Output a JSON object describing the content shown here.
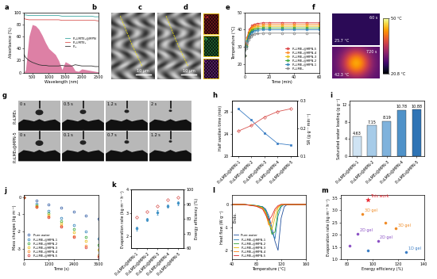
{
  "chart_data": [
    {
      "panel": "a",
      "type": "line",
      "xlabel": "Wavelength (nm)",
      "ylabel": "Absorbance (%)",
      "x": [
        250,
        300,
        400,
        500,
        600,
        700,
        800,
        900,
        1000,
        1100,
        1200,
        1300,
        1400,
        1500,
        1600,
        1700,
        1800,
        1900,
        2000,
        2100,
        2200,
        2300,
        2400,
        2500
      ],
      "xlim": [
        250,
        2500
      ],
      "xticks": [
        500,
        1000,
        1500,
        2000,
        2500
      ],
      "ylim": [
        0,
        100
      ],
      "yticks": [
        0,
        20,
        40,
        60,
        80,
        100
      ],
      "legend": "center right",
      "series": [
        {
          "type": "area",
          "color": "#c2185b",
          "values": [
            0,
            5,
            60,
            80,
            78,
            72,
            62,
            50,
            40,
            35,
            30,
            20,
            5,
            18,
            15,
            12,
            3,
            2,
            6,
            5,
            4,
            3,
            2,
            1
          ]
        },
        {
          "name": "P₁₀LMTE₆@MPN",
          "color": "#3aa6a0",
          "values": [
            96,
            96,
            95,
            95,
            95,
            95,
            95,
            95,
            95,
            95,
            95,
            95,
            94,
            94,
            94,
            94,
            94,
            94,
            94,
            94,
            94,
            94,
            93,
            93
          ]
        },
        {
          "name": "P₁₀LMTE₆",
          "color": "#d9534f",
          "values": [
            90,
            89,
            88,
            88,
            88,
            88,
            88,
            88,
            88,
            88,
            88,
            88,
            87,
            87,
            87,
            87,
            87,
            87,
            87,
            87,
            87,
            87,
            87,
            86
          ]
        },
        {
          "name": "P₁₀",
          "color": "#333333",
          "values": [
            30,
            25,
            20,
            17,
            15,
            13,
            12,
            12,
            11,
            11,
            11,
            11,
            12,
            11,
            11,
            11,
            13,
            12,
            11,
            11,
            11,
            11,
            10,
            10
          ]
        }
      ]
    },
    {
      "panel": "b",
      "type": "image",
      "scale_bar": "10 μm"
    },
    {
      "panel": "c",
      "type": "image",
      "scale_bar": "10 μm"
    },
    {
      "panel": "d",
      "type": "image",
      "channels": [
        {
          "name": "Ga",
          "color": "#e0303a"
        },
        {
          "name": "Fe",
          "color": "#3fbf5f"
        },
        {
          "name": "C",
          "color": "#b040d0"
        }
      ]
    },
    {
      "panel": "e",
      "type": "line",
      "xlabel": "Time (min)",
      "ylabel": "Temperature (°C)",
      "x": [
        0,
        1,
        2,
        3,
        4,
        5,
        6,
        8,
        10,
        15,
        20,
        30,
        40,
        50,
        60
      ],
      "xlim": [
        0,
        60
      ],
      "xticks": [
        0,
        20,
        40,
        60
      ],
      "ylim": [
        15,
        50
      ],
      "yticks": [
        20,
        30,
        40,
        50
      ],
      "legend": "lower right",
      "series": [
        {
          "name": "P₁₀LME₆@MPN-5",
          "color": "#d62728",
          "marker": "open_circle",
          "values": [
            25,
            31.3,
            35.5,
            38.3,
            40.2,
            41.3,
            42.3,
            43.2,
            43.6,
            44,
            44,
            44,
            44,
            44,
            44
          ]
        },
        {
          "name": "P₁₀LME₆@MPN-4",
          "color": "#ff7f0e",
          "marker": "open_circle",
          "values": [
            25,
            30.9,
            34.9,
            37.6,
            39.4,
            40.5,
            41.4,
            42.3,
            42.6,
            43,
            43,
            43,
            43,
            43,
            43
          ]
        },
        {
          "name": "P₁₀LME₆@MPN-3",
          "color": "#e6b800",
          "marker": "open_circle",
          "values": [
            25,
            30.6,
            34.4,
            36.9,
            38.6,
            39.6,
            40.5,
            41.3,
            41.7,
            42,
            42,
            42,
            42,
            42,
            42
          ]
        },
        {
          "name": "P₁₀LME₆@MPN-2",
          "color": "#2ca02c",
          "marker": "open_circle",
          "values": [
            25,
            30.3,
            33.8,
            36.2,
            37.8,
            38.8,
            39.6,
            40.4,
            40.7,
            41,
            41,
            41,
            41,
            41,
            41
          ]
        },
        {
          "name": "P₁₀LME₆@MPN-1",
          "color": "#1f77b4",
          "marker": "open_circle",
          "values": [
            25,
            30,
            33.3,
            35.5,
            37,
            37.9,
            38.7,
            39.4,
            39.7,
            40,
            40,
            40,
            40,
            40,
            40
          ]
        },
        {
          "name": "P₁₀LME₆",
          "color": "#7f7f7f",
          "marker": "open_circle",
          "values": [
            25,
            29.3,
            32.2,
            34.1,
            35.4,
            36.2,
            36.8,
            37.5,
            37.7,
            38,
            38,
            38,
            38,
            38,
            38
          ]
        }
      ]
    },
    {
      "panel": "f",
      "type": "image",
      "frames": [
        {
          "time": "60 s",
          "temperature": "25.7 °C"
        },
        {
          "time": "720 s",
          "temperature": "42.3 °C"
        }
      ],
      "cbar_range": [
        20.8,
        50
      ],
      "cbar_ticks": [
        {
          "value": 20.8,
          "label": "20.8 °C"
        },
        {
          "value": 50,
          "label": "50 °C"
        }
      ]
    },
    {
      "panel": "g",
      "type": "image",
      "rows": [
        {
          "name": "P₁₀LME₆",
          "times": [
            "0 s",
            "0.5 s",
            "1.2 s",
            "2 s"
          ]
        },
        {
          "name": "P₁₀LME₆@MPN-5",
          "times": [
            "0 s",
            "0.1 s",
            "0.7 s",
            "1.2 s"
          ]
        }
      ]
    },
    {
      "panel": "h",
      "type": "line",
      "ylabel": "Half swollen time (min)",
      "y2label": "SR (g g⁻¹ min⁻¹)",
      "categories": [
        "P₁₀LME₆@MPN-1",
        "P₁₀LME₆@MPN-2",
        "P₁₀LME₆@MPN-3",
        "P₁₀LME₆@MPN-4",
        "P₁₀LME₆@MPN-5"
      ],
      "ylim": [
        20,
        30
      ],
      "yticks": [
        20,
        24,
        28
      ],
      "y2lim": [
        0.1,
        0.3
      ],
      "y2ticks": [
        0.1,
        0.2,
        0.3
      ],
      "series": [
        {
          "color": "#3a7dc4",
          "marker": "square",
          "values": [
            28.5,
            26.5,
            24.2,
            22.3,
            22.0
          ]
        },
        {
          "color": "#d9534f",
          "marker": "open_diamond",
          "axis": "y2",
          "values": [
            0.19,
            0.21,
            0.24,
            0.26,
            0.27
          ]
        }
      ]
    },
    {
      "panel": "i",
      "type": "bar",
      "ylabel": "Saturated water loading (g g⁻¹)",
      "categories": [
        "P₁₀LME₆@MPN-1",
        "P₁₀LME₆@MPN-2",
        "P₁₀LME₆@MPN-3",
        "P₁₀LME₆@MPN-4",
        "P₁₀LME₆@MPN-5"
      ],
      "values": [
        4.63,
        7.15,
        8.19,
        10.78,
        10.88
      ],
      "colors": [
        "#cfe3f3",
        "#a6cbe8",
        "#7fb2dc",
        "#4f92c9",
        "#2f74b5"
      ],
      "ylim": [
        0,
        13
      ],
      "yticks": [
        0,
        4,
        8,
        12
      ],
      "data_labels": true
    },
    {
      "panel": "j",
      "type": "line",
      "xlabel": "Time (s)",
      "ylabel": "Mass changes (kg m⁻²)",
      "x": [
        0,
        600,
        1200,
        1800,
        2400,
        3000,
        3600
      ],
      "xlim": [
        0,
        3600
      ],
      "xticks": [
        0,
        1200,
        2400,
        3600
      ],
      "ylim": [
        -3.6,
        0.1
      ],
      "yticks": [
        -3,
        -2,
        -1,
        0
      ],
      "legend": "lower left",
      "series": [
        {
          "name": "Pure water",
          "color": "#1f4e9c",
          "marker": "open_circle",
          "line_style": "none",
          "values": [
            0,
            -0.2,
            -0.42,
            -0.63,
            -0.84,
            -1.05,
            -1.25
          ]
        },
        {
          "name": "P₁₀LME₆@MPN-1",
          "color": "#1f77b4",
          "marker": "open_circle",
          "line_style": "none",
          "values": [
            0,
            -0.4,
            -0.8,
            -1.2,
            -1.6,
            -2.0,
            -2.4
          ]
        },
        {
          "name": "P₁₀LME₆@MPN-2",
          "color": "#2ca02c",
          "marker": "open_circle",
          "line_style": "none",
          "values": [
            0,
            -0.46,
            -0.92,
            -1.38,
            -1.84,
            -2.3,
            -2.75
          ]
        },
        {
          "name": "P₁₀LME₆@MPN-3",
          "color": "#e6b800",
          "marker": "open_circle",
          "line_style": "none",
          "values": [
            0,
            -0.51,
            -1.02,
            -1.53,
            -2.04,
            -2.55,
            -3.05
          ]
        },
        {
          "name": "P₁₀LME₆@MPN-4",
          "color": "#ff7f0e",
          "marker": "open_circle",
          "line_style": "none",
          "values": [
            0,
            -0.56,
            -1.12,
            -1.68,
            -2.24,
            -2.8,
            -3.35
          ]
        },
        {
          "name": "P₁₀LME₆@MPN-5",
          "color": "#d62728",
          "marker": "open_circle",
          "line_style": "none",
          "values": [
            0,
            -0.58,
            -1.15,
            -1.73,
            -2.3,
            -2.88,
            -3.45
          ]
        }
      ]
    },
    {
      "panel": "k",
      "type": "line",
      "ylabel": "Evaporation rate (kg m⁻² h⁻¹)",
      "y2label": "Energy efficiency (%)",
      "categories": [
        "P₁₀LME₆@MPN-1",
        "P₁₀LME₆@MPN-2",
        "P₁₀LME₆@MPN-3",
        "P₁₀LME₆@MPN-4",
        "P₁₀LME₆@MPN-5"
      ],
      "ylim": [
        1.5,
        4
      ],
      "yticks": [
        2,
        3,
        4
      ],
      "y2lim": [
        60,
        100
      ],
      "y2ticks": [
        60,
        70,
        80,
        90,
        100
      ],
      "series": [
        {
          "color": "#3a8fc4",
          "marker": "circle",
          "line_style": "none",
          "values": [
            2.35,
            2.73,
            3.03,
            3.3,
            3.43
          ],
          "errors": [
            0.08,
            0.07,
            0.09,
            0.06,
            0.08
          ]
        },
        {
          "color": "#d9534f",
          "marker": "open_diamond",
          "line_style": "none",
          "axis": "y2",
          "values": [
            81,
            85,
            89,
            93,
            95
          ]
        }
      ]
    },
    {
      "panel": "l",
      "type": "line",
      "xlabel": "Temperature (°C)",
      "ylabel": "Heat flow (W g⁻¹)",
      "note": "Endo.",
      "x": [
        40,
        60,
        80,
        90,
        95,
        100,
        105,
        110,
        115,
        120,
        125,
        130,
        140,
        160
      ],
      "xlim": [
        40,
        160
      ],
      "xticks": [
        40,
        80,
        120,
        160
      ],
      "ylim": [
        -2.4,
        0.4
      ],
      "yticks": [
        -2,
        -1,
        0
      ],
      "legend": "lower left",
      "series": [
        {
          "name": "Pure water",
          "color": "#1f4e9c",
          "values": [
            0,
            0,
            -0.05,
            -0.1,
            -0.2,
            -0.5,
            -1.0,
            -1.6,
            -2.0,
            -0.6,
            -0.1,
            0,
            0,
            0
          ]
        },
        {
          "name": "P₁₀LME₆@MPN-1",
          "color": "#1f77b4",
          "values": [
            0,
            0,
            -0.05,
            -0.1,
            -0.25,
            -0.6,
            -1.2,
            -1.5,
            -0.5,
            -0.1,
            0,
            0,
            0,
            0
          ]
        },
        {
          "name": "P₁₀LME₆@MPN-2",
          "color": "#2ca02c",
          "values": [
            0,
            0,
            -0.05,
            -0.12,
            -0.3,
            -0.7,
            -1.3,
            -1.2,
            -0.3,
            -0.05,
            0,
            0,
            0,
            0
          ]
        },
        {
          "name": "P₁₀LME₆@MPN-3",
          "color": "#e6b800",
          "values": [
            0,
            0,
            -0.06,
            -0.15,
            -0.35,
            -0.8,
            -1.1,
            -0.6,
            -0.15,
            0,
            0,
            0,
            0,
            0
          ]
        },
        {
          "name": "P₁₀LME₆@MPN-4",
          "color": "#ff7f0e",
          "values": [
            0,
            0,
            -0.07,
            -0.18,
            -0.4,
            -0.9,
            -0.8,
            -0.3,
            -0.1,
            0,
            0,
            0,
            0,
            0
          ]
        },
        {
          "name": "P₁₀LME₆@MPN-5",
          "color": "#d62728",
          "values": [
            0,
            0,
            -0.08,
            -0.2,
            -0.45,
            -0.7,
            -0.5,
            -0.2,
            -0.05,
            0,
            0,
            0,
            0,
            0
          ]
        }
      ]
    },
    {
      "panel": "m",
      "type": "scatter",
      "xlabel": "Energy efficiency (%)",
      "ylabel": "Evaporation rate (kg m⁻² h⁻¹)",
      "xlim": [
        75,
        140
      ],
      "xticks": [
        80,
        100,
        120,
        140
      ],
      "ylim": [
        1.0,
        3.6
      ],
      "yticks": [
        1.0,
        1.5,
        2.0,
        2.5,
        3.0,
        3.5
      ],
      "points": [
        {
          "x": 96,
          "y": 3.43,
          "label": "This work",
          "color": "#e8202a",
          "marker": "star"
        },
        {
          "x": 92,
          "y": 2.85,
          "label": "3D gel",
          "color": "#f08a24",
          "marker": "circle"
        },
        {
          "x": 118,
          "y": 2.25,
          "label": "3D gel",
          "color": "#f08a24",
          "marker": "circle"
        },
        {
          "x": 110,
          "y": 2.5,
          "color": "#f08a24",
          "marker": "circle"
        },
        {
          "x": 88,
          "y": 2.05,
          "label": "2D gel",
          "color": "#8a4fc4",
          "marker": "circle"
        },
        {
          "x": 104,
          "y": 1.75,
          "label": "2D gel",
          "color": "#8a4fc4",
          "marker": "circle"
        },
        {
          "x": 82,
          "y": 1.55,
          "color": "#8a4fc4",
          "marker": "circle"
        },
        {
          "x": 126,
          "y": 1.3,
          "label": "1D gel",
          "color": "#3a7dc4",
          "marker": "circle"
        },
        {
          "x": 96,
          "y": 1.35,
          "color": "#3a7dc4",
          "marker": "circle"
        }
      ]
    }
  ]
}
